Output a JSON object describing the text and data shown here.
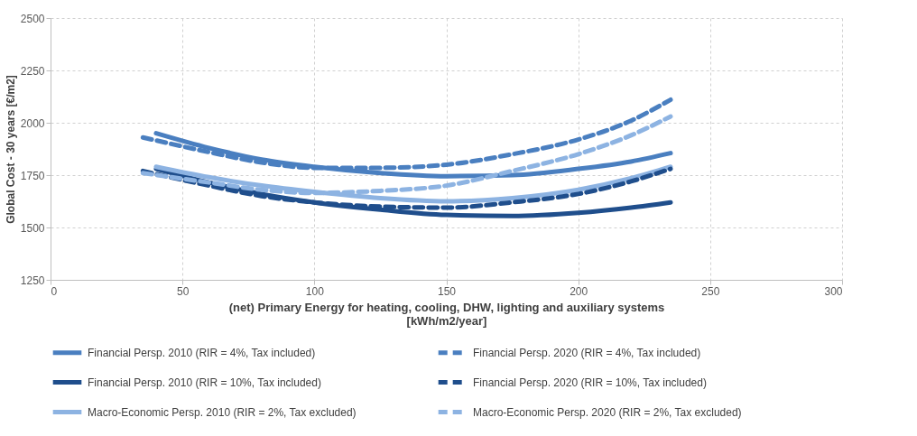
{
  "chart_data": {
    "type": "line",
    "xlabel": "(net) Primary Energy for heating, cooling, DHW, lighting and auxiliary systems\n[kWh/m2/year]",
    "ylabel": "Global Cost - 30 years [€/m2]",
    "xlim": [
      0,
      300
    ],
    "xticks": [
      0,
      50,
      100,
      150,
      200,
      250,
      300
    ],
    "ylim": [
      1250,
      2500
    ],
    "yticks": [
      1250,
      1500,
      1750,
      2000,
      2250,
      2500
    ],
    "grid": true,
    "legend": "bottom",
    "marker": "none",
    "series": [
      {
        "name": "Financial Persp. 2010 (RIR = 4%, Tax included)",
        "color": "#4a7fc0",
        "line_style": "solid",
        "x": [
          40,
          60,
          80,
          100,
          125,
          150,
          175,
          200,
          220,
          235
        ],
        "values": [
          1950,
          1880,
          1825,
          1790,
          1760,
          1745,
          1750,
          1780,
          1815,
          1855
        ]
      },
      {
        "name": "Financial Persp. 2010 (RIR = 10%, Tax included)",
        "color": "#1f4e8c",
        "line_style": "solid",
        "x": [
          40,
          60,
          80,
          100,
          125,
          150,
          175,
          200,
          220,
          235
        ],
        "values": [
          1780,
          1715,
          1660,
          1620,
          1585,
          1560,
          1555,
          1570,
          1595,
          1620
        ]
      },
      {
        "name": "Macro-Economic Persp. 2010 (RIR = 2%, Tax excluded)",
        "color": "#8db3e2",
        "line_style": "solid",
        "x": [
          40,
          60,
          80,
          100,
          125,
          150,
          175,
          200,
          220,
          235
        ],
        "values": [
          1790,
          1740,
          1700,
          1670,
          1640,
          1625,
          1640,
          1680,
          1735,
          1790
        ]
      },
      {
        "name": "Financial Persp. 2020 (RIR = 4%, Tax included)",
        "color": "#4a7fc0",
        "line_style": "dashed",
        "x": [
          35,
          60,
          80,
          100,
          125,
          150,
          175,
          200,
          220,
          235
        ],
        "values": [
          1930,
          1860,
          1810,
          1785,
          1785,
          1800,
          1850,
          1920,
          2010,
          2110
        ]
      },
      {
        "name": "Financial Persp. 2020 (RIR = 10%, Tax included)",
        "color": "#1f4e8c",
        "line_style": "dashed",
        "x": [
          35,
          60,
          80,
          100,
          125,
          150,
          175,
          200,
          220,
          235
        ],
        "values": [
          1770,
          1700,
          1650,
          1620,
          1600,
          1595,
          1620,
          1660,
          1720,
          1780
        ]
      },
      {
        "name": "Macro-Economic Persp. 2020 (RIR = 2%, Tax excluded)",
        "color": "#8db3e2",
        "line_style": "dashed",
        "x": [
          35,
          60,
          80,
          100,
          125,
          150,
          175,
          200,
          220,
          235
        ],
        "values": [
          1760,
          1715,
          1680,
          1665,
          1675,
          1700,
          1770,
          1850,
          1940,
          2030
        ]
      }
    ]
  }
}
